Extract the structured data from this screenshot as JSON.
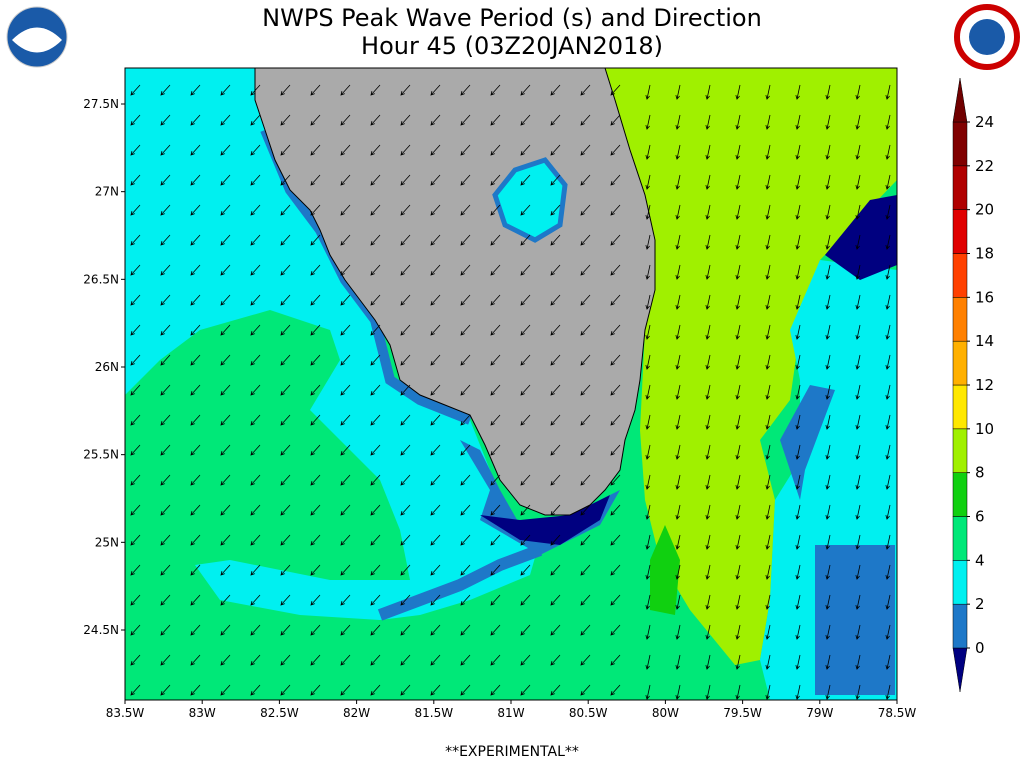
{
  "header": {
    "title": "NWPS Peak Wave Period (s) and Direction",
    "subtitle": "Hour 45 (03Z20JAN2018)"
  },
  "map": {
    "lat_labels": [
      {
        "value": 27.5,
        "label": "27.5N"
      },
      {
        "value": 27,
        "label": "27N"
      },
      {
        "value": 26.5,
        "label": "26.5N"
      },
      {
        "value": 26,
        "label": "26N"
      },
      {
        "value": 25.5,
        "label": "25.5N"
      },
      {
        "value": 25,
        "label": "25N"
      },
      {
        "value": 24.5,
        "label": "24.5N"
      }
    ],
    "lon_labels": [
      {
        "value": -83.5,
        "label": "83.5W"
      },
      {
        "value": -83,
        "label": "83W"
      },
      {
        "value": -82.5,
        "label": "82.5W"
      },
      {
        "value": -82,
        "label": "82W"
      },
      {
        "value": -81.5,
        "label": "81.5W"
      },
      {
        "value": -81,
        "label": "81W"
      },
      {
        "value": -80.5,
        "label": "80.5W"
      },
      {
        "value": -80,
        "label": "80W"
      },
      {
        "value": -79.5,
        "label": "79.5W"
      },
      {
        "value": -79,
        "label": "79W"
      },
      {
        "value": -78.5,
        "label": "78.5W"
      }
    ]
  },
  "colorbar": {
    "ticks": [
      0,
      2,
      4,
      6,
      8,
      10,
      12,
      14,
      16,
      18,
      20,
      22,
      24
    ],
    "colors": [
      "#000080",
      "#1e78c8",
      "#00f0f0",
      "#00e878",
      "#10d010",
      "#a0f000",
      "#ffe800",
      "#ffb000",
      "#ff8000",
      "#ff4000",
      "#e00000",
      "#b00000",
      "#800000",
      "#700000"
    ]
  },
  "footer": {
    "note": "**EXPERIMENTAL**"
  }
}
